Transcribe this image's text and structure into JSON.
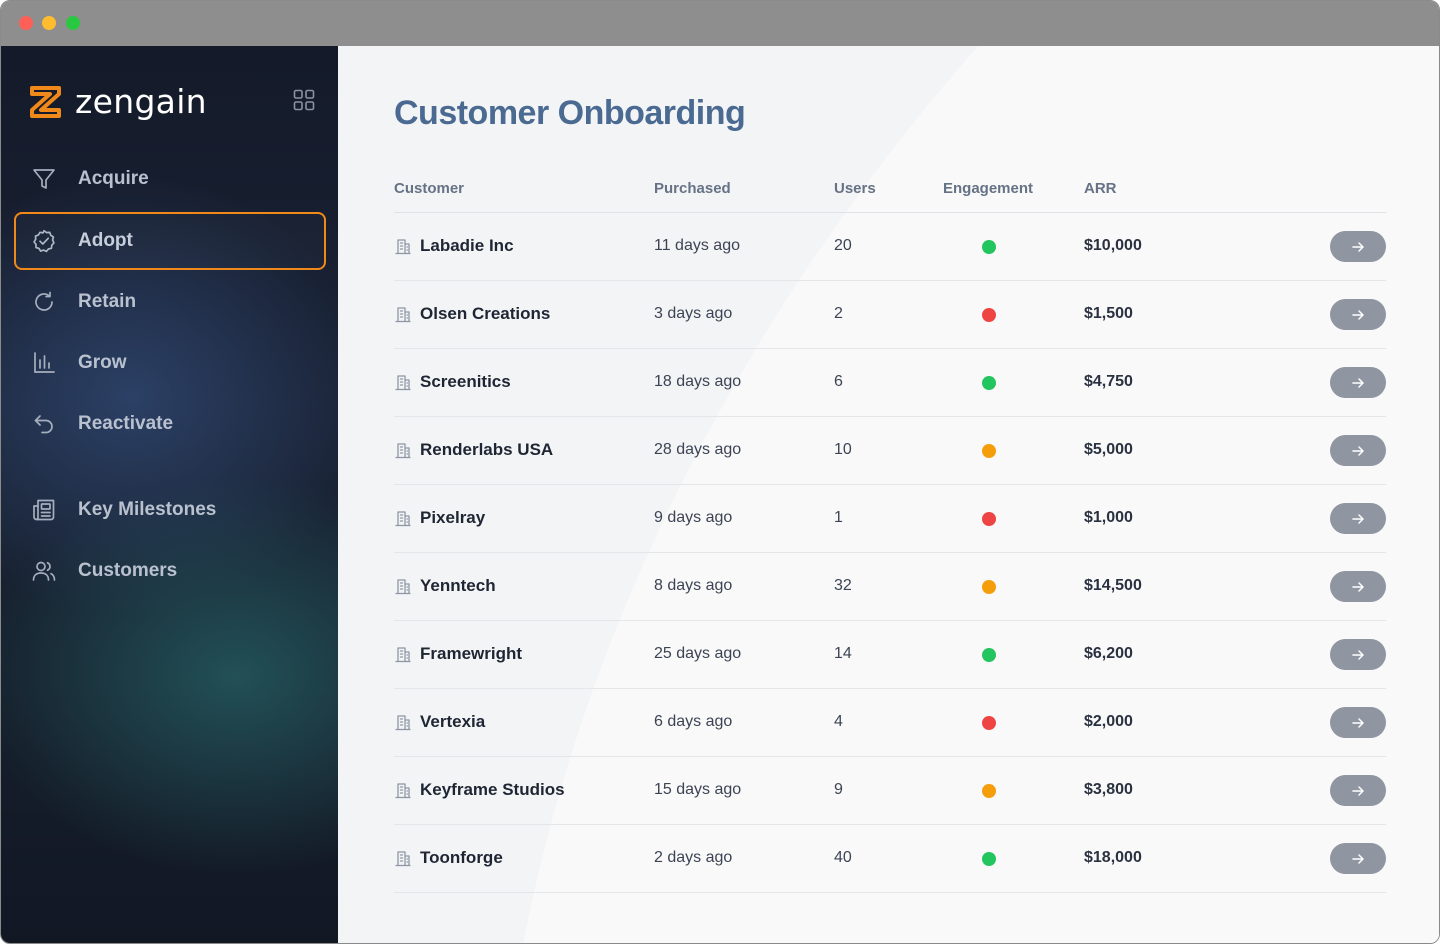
{
  "window": {
    "controls": [
      "close",
      "minimize",
      "zoom"
    ]
  },
  "sidebar": {
    "brand": {
      "name": "zengain",
      "accent": "#f0891a"
    },
    "apps_icon": "grid-icon",
    "items": [
      {
        "label": "Acquire",
        "icon": "funnel-icon",
        "active": false
      },
      {
        "label": "Adopt",
        "icon": "badge-check-icon",
        "active": true
      },
      {
        "label": "Retain",
        "icon": "refresh-icon",
        "active": false
      },
      {
        "label": "Grow",
        "icon": "bar-chart-icon",
        "active": false
      },
      {
        "label": "Reactivate",
        "icon": "undo-arrow-icon",
        "active": false
      },
      {
        "label": "Key Milestones",
        "icon": "newspaper-icon",
        "active": false
      },
      {
        "label": "Customers",
        "icon": "users-icon",
        "active": false
      }
    ]
  },
  "main": {
    "title": "Customer Onboarding",
    "columns": [
      "Customer",
      "Purchased",
      "Users",
      "Engagement",
      "ARR"
    ],
    "status_colors": {
      "green": "#22c55e",
      "red": "#ef4444",
      "orange": "#f59e0b"
    },
    "rows": [
      {
        "customer": "Labadie Inc",
        "purchased": "11 days ago",
        "users": "20",
        "engagement": "green",
        "arr": "$10,000"
      },
      {
        "customer": "Olsen Creations",
        "purchased": "3 days ago",
        "users": "2",
        "engagement": "red",
        "arr": "$1,500"
      },
      {
        "customer": "Screenitics",
        "purchased": "18 days ago",
        "users": "6",
        "engagement": "green",
        "arr": "$4,750"
      },
      {
        "customer": "Renderlabs USA",
        "purchased": "28 days ago",
        "users": "10",
        "engagement": "orange",
        "arr": "$5,000"
      },
      {
        "customer": "Pixelray",
        "purchased": "9 days ago",
        "users": "1",
        "engagement": "red",
        "arr": "$1,000"
      },
      {
        "customer": "Yenntech",
        "purchased": "8 days ago",
        "users": "32",
        "engagement": "orange",
        "arr": "$14,500"
      },
      {
        "customer": "Framewright",
        "purchased": "25 days ago",
        "users": "14",
        "engagement": "green",
        "arr": "$6,200"
      },
      {
        "customer": "Vertexia",
        "purchased": "6 days ago",
        "users": "4",
        "engagement": "red",
        "arr": "$2,000"
      },
      {
        "customer": "Keyframe Studios",
        "purchased": "15 days ago",
        "users": "9",
        "engagement": "orange",
        "arr": "$3,800"
      },
      {
        "customer": "Toonforge",
        "purchased": "2 days ago",
        "users": "40",
        "engagement": "green",
        "arr": "$18,000"
      }
    ]
  }
}
